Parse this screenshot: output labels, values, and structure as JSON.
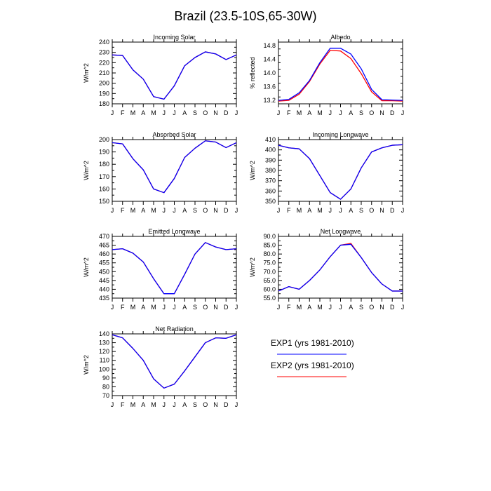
{
  "figure": {
    "title": "Brazil (23.5-10S,65-30W)"
  },
  "legend": {
    "placement": "bottom-right",
    "entries": [
      {
        "label": "EXP1 (yrs 1981-2010)",
        "color": "#0000ff"
      },
      {
        "label": "EXP2 (yrs 1981-2010)",
        "color": "#ff0000"
      }
    ]
  },
  "chart_data": [
    {
      "type": "line",
      "title": "Incoming Solar",
      "xlabel": "",
      "ylabel": "W/m^2",
      "categories": [
        "J",
        "F",
        "M",
        "A",
        "M",
        "J",
        "J",
        "A",
        "S",
        "O",
        "N",
        "D",
        "J"
      ],
      "ylim": [
        180,
        240
      ],
      "yticks": [
        180,
        190,
        200,
        210,
        220,
        230,
        240
      ],
      "ytick_labels": [
        "180",
        "190",
        "200",
        "210",
        "220",
        "230",
        "240"
      ],
      "grid": false,
      "series": [
        {
          "name": "EXP1 (yrs 1981-2010)",
          "color": "#0000ff",
          "values": [
            227.5,
            227,
            213,
            204,
            187,
            184.5,
            197.5,
            217,
            225,
            230.5,
            228.5,
            223,
            227.5
          ]
        },
        {
          "name": "EXP2 (yrs 1981-2010)",
          "color": "#ff0000",
          "values": [
            227.5,
            227,
            213,
            204,
            187,
            184.5,
            197.5,
            217,
            225,
            230.5,
            228.5,
            223,
            227.5
          ]
        }
      ]
    },
    {
      "type": "line",
      "title": "Albedo",
      "xlabel": "",
      "ylabel": "% reflected",
      "categories": [
        "J",
        "F",
        "M",
        "A",
        "M",
        "J",
        "J",
        "A",
        "S",
        "O",
        "N",
        "D",
        "J"
      ],
      "ylim": [
        13.1,
        14.9
      ],
      "yticks": [
        13.2,
        13.6,
        14.0,
        14.4,
        14.8
      ],
      "ytick_labels": [
        "13.2",
        "13.6",
        "14.0",
        "14.4",
        "14.8"
      ],
      "grid": false,
      "series": [
        {
          "name": "EXP1 (yrs 1981-2010)",
          "color": "#0000ff",
          "values": [
            13.2,
            13.23,
            13.42,
            13.78,
            14.3,
            14.72,
            14.72,
            14.55,
            14.12,
            13.52,
            13.22,
            13.21,
            13.2
          ]
        },
        {
          "name": "EXP2 (yrs 1981-2010)",
          "color": "#ff0000",
          "values": [
            13.18,
            13.2,
            13.38,
            13.75,
            14.26,
            14.66,
            14.64,
            14.42,
            13.98,
            13.45,
            13.19,
            13.19,
            13.18
          ]
        }
      ]
    },
    {
      "type": "line",
      "title": "Absorbed Solar",
      "xlabel": "",
      "ylabel": "W/m^2",
      "categories": [
        "J",
        "F",
        "M",
        "A",
        "M",
        "J",
        "J",
        "A",
        "S",
        "O",
        "N",
        "D",
        "J"
      ],
      "ylim": [
        150,
        200
      ],
      "yticks": [
        150,
        160,
        170,
        180,
        190,
        200
      ],
      "ytick_labels": [
        "150",
        "160",
        "170",
        "180",
        "190",
        "200"
      ],
      "grid": false,
      "series": [
        {
          "name": "EXP1 (yrs 1981-2010)",
          "color": "#0000ff",
          "values": [
            197.5,
            196.5,
            184.5,
            175.5,
            160,
            157,
            168.5,
            185.5,
            193,
            199,
            198,
            193.5,
            197.5
          ]
        },
        {
          "name": "EXP2 (yrs 1981-2010)",
          "color": "#ff0000",
          "values": [
            197.5,
            196.5,
            184.5,
            175.5,
            160,
            157,
            168.5,
            185.5,
            193,
            199,
            198,
            193.5,
            197.5
          ]
        }
      ]
    },
    {
      "type": "line",
      "title": "Incoming Longwave",
      "xlabel": "",
      "ylabel": "W/m^2",
      "categories": [
        "J",
        "F",
        "M",
        "A",
        "M",
        "J",
        "J",
        "A",
        "S",
        "O",
        "N",
        "D",
        "J"
      ],
      "ylim": [
        350,
        410
      ],
      "yticks": [
        350,
        360,
        370,
        380,
        390,
        400,
        410
      ],
      "ytick_labels": [
        "350",
        "360",
        "370",
        "380",
        "390",
        "400",
        "410"
      ],
      "grid": false,
      "series": [
        {
          "name": "EXP1 (yrs 1981-2010)",
          "color": "#0000ff",
          "values": [
            404.5,
            402,
            401,
            391.5,
            375,
            358.5,
            352,
            362,
            382.5,
            398,
            402,
            404.5,
            405
          ]
        },
        {
          "name": "EXP2 (yrs 1981-2010)",
          "color": "#ff0000",
          "values": [
            404.5,
            402,
            401,
            391.5,
            375,
            358.5,
            352,
            362,
            382.5,
            398,
            402,
            404.5,
            405
          ]
        }
      ]
    },
    {
      "type": "line",
      "title": "Emitted Longwave",
      "xlabel": "",
      "ylabel": "W/m^2",
      "categories": [
        "J",
        "F",
        "M",
        "A",
        "M",
        "J",
        "J",
        "A",
        "S",
        "O",
        "N",
        "D",
        "J"
      ],
      "ylim": [
        435,
        470
      ],
      "yticks": [
        435,
        440,
        445,
        450,
        455,
        460,
        465,
        470
      ],
      "ytick_labels": [
        "435",
        "440",
        "445",
        "450",
        "455",
        "460",
        "465",
        "470"
      ],
      "grid": false,
      "series": [
        {
          "name": "EXP1 (yrs 1981-2010)",
          "color": "#0000ff",
          "values": [
            462.5,
            463,
            460.5,
            455.5,
            446,
            437.5,
            437.5,
            448.5,
            460,
            466.5,
            464,
            462.5,
            463
          ]
        },
        {
          "name": "EXP2 (yrs 1981-2010)",
          "color": "#ff0000",
          "values": [
            462.5,
            463,
            460.5,
            455.5,
            446,
            437.5,
            437.5,
            448.5,
            460,
            466.5,
            464,
            462.5,
            463
          ]
        }
      ]
    },
    {
      "type": "line",
      "title": "Net Longwave",
      "xlabel": "",
      "ylabel": "W/m^2",
      "categories": [
        "J",
        "F",
        "M",
        "A",
        "M",
        "J",
        "J",
        "A",
        "S",
        "O",
        "N",
        "D",
        "J"
      ],
      "ylim": [
        55,
        90
      ],
      "yticks": [
        55,
        60,
        65,
        70,
        75,
        80,
        85,
        90
      ],
      "ytick_labels": [
        "55.0",
        "60.0",
        "65.0",
        "70.0",
        "75.0",
        "80.0",
        "85.0",
        "90.0"
      ],
      "grid": false,
      "series": [
        {
          "name": "EXP1 (yrs 1981-2010)",
          "color": "#0000ff",
          "values": [
            59,
            61.5,
            60,
            65,
            71,
            78.5,
            85,
            85.5,
            78,
            69.5,
            63,
            59,
            59
          ]
        },
        {
          "name": "EXP2 (yrs 1981-2010)",
          "color": "#ff0000",
          "values": [
            59,
            61.5,
            60,
            65,
            71,
            78.5,
            85,
            86,
            78,
            69.5,
            63,
            59,
            59
          ]
        }
      ]
    },
    {
      "type": "line",
      "title": "Net Radiation",
      "xlabel": "",
      "ylabel": "W/m^2",
      "categories": [
        "J",
        "F",
        "M",
        "A",
        "M",
        "J",
        "J",
        "A",
        "S",
        "O",
        "N",
        "D",
        "J"
      ],
      "ylim": [
        70,
        140
      ],
      "yticks": [
        70,
        80,
        90,
        100,
        110,
        120,
        130,
        140
      ],
      "ytick_labels": [
        "70",
        "80",
        "90",
        "100",
        "110",
        "120",
        "130",
        "140"
      ],
      "grid": false,
      "series": [
        {
          "name": "EXP1 (yrs 1981-2010)",
          "color": "#0000ff",
          "values": [
            139,
            135.5,
            123.5,
            110,
            89,
            78.5,
            83,
            98,
            114,
            130,
            135.5,
            135,
            139
          ]
        },
        {
          "name": "EXP2 (yrs 1981-2010)",
          "color": "#ff0000",
          "values": [
            139,
            135.5,
            123.5,
            110,
            89,
            78.5,
            83,
            98,
            114,
            130,
            135.5,
            135,
            139
          ]
        }
      ]
    }
  ]
}
